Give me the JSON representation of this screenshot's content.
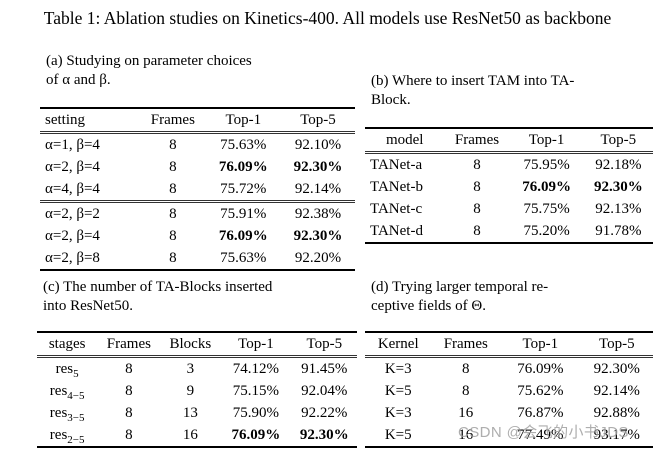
{
  "title": "Table 1: Ablation studies on Kinetics-400. All models use ResNet50 as backbone",
  "tables": {
    "a": {
      "caption": [
        "(a) Studying on parameter choices",
        "of α and β."
      ],
      "headers": [
        "setting",
        "Frames",
        "Top-1",
        "Top-5"
      ],
      "rows": [
        [
          "α=1, β=4",
          "8",
          "75.63%",
          "92.10%"
        ],
        [
          "α=2, β=4",
          "8",
          "76.09%",
          "92.30%"
        ],
        [
          "α=4, β=4",
          "8",
          "75.72%",
          "92.14%"
        ],
        [
          "α=2, β=2",
          "8",
          "75.91%",
          "92.38%"
        ],
        [
          "α=2, β=4",
          "8",
          "76.09%",
          "92.30%"
        ],
        [
          "α=2, β=8",
          "8",
          "75.63%",
          "92.20%"
        ]
      ]
    },
    "b": {
      "caption": [
        "(b) Where to insert TAM into TA-",
        "Block."
      ],
      "headers": [
        "model",
        "Frames",
        "Top-1",
        "Top-5"
      ],
      "rows": [
        [
          "TANet-a",
          "8",
          "75.95%",
          "92.18%"
        ],
        [
          "TANet-b",
          "8",
          "76.09%",
          "92.30%"
        ],
        [
          "TANet-c",
          "8",
          "75.75%",
          "92.13%"
        ],
        [
          "TANet-d",
          "8",
          "75.20%",
          "91.78%"
        ]
      ]
    },
    "c": {
      "caption": [
        "(c) The number of TA-Blocks inserted",
        "into ResNet50."
      ],
      "headers": [
        "stages",
        "Frames",
        "Blocks",
        "Top-1",
        "Top-5"
      ],
      "rows": [
        {
          "stage": {
            "base": "res",
            "sub": "5"
          },
          "cells": [
            "8",
            "3",
            "74.12%",
            "91.45%"
          ]
        },
        {
          "stage": {
            "base": "res",
            "sub": "4−5"
          },
          "cells": [
            "8",
            "9",
            "75.15%",
            "92.04%"
          ]
        },
        {
          "stage": {
            "base": "res",
            "sub": "3−5"
          },
          "cells": [
            "8",
            "13",
            "75.90%",
            "92.22%"
          ]
        },
        {
          "stage": {
            "base": "res",
            "sub": "2−5"
          },
          "cells": [
            "8",
            "16",
            "76.09%",
            "92.30%"
          ]
        }
      ]
    },
    "d": {
      "caption": [
        "(d) Trying larger temporal re-",
        "ceptive fields of Θ."
      ],
      "headers": [
        "Kernel",
        "Frames",
        "Top-1",
        "Top-5"
      ],
      "rows": [
        [
          "K=3",
          "8",
          "76.09%",
          "92.30%"
        ],
        [
          "K=5",
          "8",
          "75.62%",
          "92.14%"
        ],
        [
          "K=3",
          "16",
          "76.87%",
          "92.88%"
        ],
        [
          "K=5",
          "16",
          "77.49%",
          "93.17%"
        ]
      ]
    }
  },
  "watermark": "CSDN @会飞的小书JDS"
}
